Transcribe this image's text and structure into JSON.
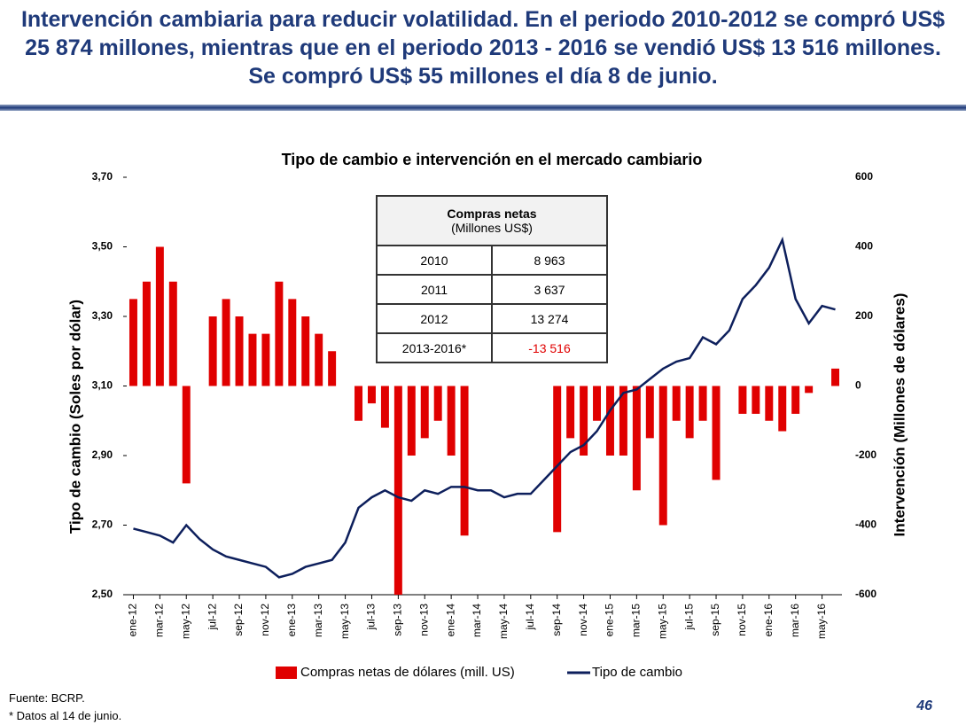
{
  "header": {
    "title": "Intervención cambiaria para reducir volatilidad. En el periodo 2010-2012 se compró US$ 25 874 millones, mientras que en el periodo 2013 - 2016 se vendió US$ 13 516 millones. Se compró US$ 55 millones el día 8 de junio."
  },
  "chart_data": {
    "type": "bar-line",
    "title": "Tipo de cambio e intervención en el mercado cambiario",
    "ylabel": "Tipo de cambio (Soles por dólar)",
    "y2label": "Intervención (Millones de dólares)",
    "categories": [
      "ene-12",
      null,
      "mar-12",
      null,
      "may-12",
      null,
      "jul-12",
      null,
      "sep-12",
      null,
      "nov-12",
      null,
      "ene-13",
      null,
      "mar-13",
      null,
      "may-13",
      null,
      "jul-13",
      null,
      "sep-13",
      null,
      "nov-13",
      null,
      "ene-14",
      null,
      "mar-14",
      null,
      "may-14",
      null,
      "jul-14",
      null,
      "sep-14",
      null,
      "nov-14",
      null,
      "ene-15",
      null,
      "mar-15",
      null,
      "may-15",
      null,
      "jul-15",
      null,
      "sep-15",
      null,
      "nov-15",
      null,
      "ene-16",
      null,
      "mar-16",
      null,
      "may-16",
      null
    ],
    "series": [
      {
        "name": "Compras netas de dólares (mill. US)",
        "type": "bar",
        "axis": "y2",
        "color": "#e00000",
        "values": [
          250,
          300,
          400,
          300,
          -280,
          0,
          200,
          250,
          200,
          150,
          150,
          300,
          250,
          200,
          150,
          100,
          0,
          -100,
          -50,
          -120,
          -600,
          -200,
          -150,
          -100,
          -200,
          -430,
          0,
          0,
          0,
          0,
          0,
          0,
          -420,
          -150,
          -200,
          -100,
          -200,
          -200,
          -300,
          -150,
          -400,
          -100,
          -150,
          -100,
          -270,
          0,
          -80,
          -80,
          -100,
          -130,
          -80,
          -20,
          0,
          50
        ]
      },
      {
        "name": "Tipo de cambio",
        "type": "line",
        "color": "#0d1f5c",
        "values": [
          2.69,
          2.68,
          2.67,
          2.65,
          2.7,
          2.66,
          2.63,
          2.61,
          2.6,
          2.59,
          2.58,
          2.55,
          2.56,
          2.58,
          2.59,
          2.6,
          2.65,
          2.75,
          2.78,
          2.8,
          2.78,
          2.77,
          2.8,
          2.79,
          2.81,
          2.81,
          2.8,
          2.8,
          2.78,
          2.79,
          2.79,
          2.83,
          2.87,
          2.91,
          2.93,
          2.97,
          3.03,
          3.08,
          3.09,
          3.12,
          3.15,
          3.17,
          3.18,
          3.24,
          3.22,
          3.26,
          3.35,
          3.39,
          3.44,
          3.52,
          3.35,
          3.28,
          3.33,
          3.32
        ]
      }
    ],
    "ylim": [
      2.5,
      3.7
    ],
    "yticks": [
      {
        "value": 2.5,
        "label": "2,50"
      },
      {
        "value": 2.7,
        "label": "2,70"
      },
      {
        "value": 2.9,
        "label": "2,90"
      },
      {
        "value": 3.1,
        "label": "3,10"
      },
      {
        "value": 3.3,
        "label": "3,30"
      },
      {
        "value": 3.5,
        "label": "3,50"
      },
      {
        "value": 3.7,
        "label": "3,70"
      }
    ],
    "y2lim": [
      -600,
      600
    ],
    "y2ticks": [
      -600,
      -400,
      -200,
      0,
      200,
      400,
      600
    ]
  },
  "table": {
    "header": [
      "Compras netas",
      "(Millones US$)"
    ],
    "rows": [
      [
        "2010",
        "8 963"
      ],
      [
        "2011",
        "3 637"
      ],
      [
        "2012",
        "13 274"
      ],
      [
        "2013-2016*",
        "-13 516"
      ]
    ]
  },
  "footer": {
    "notes": [
      "Fuente: BCRP.",
      "* Datos al 14 de junio."
    ],
    "page_number": "46"
  }
}
